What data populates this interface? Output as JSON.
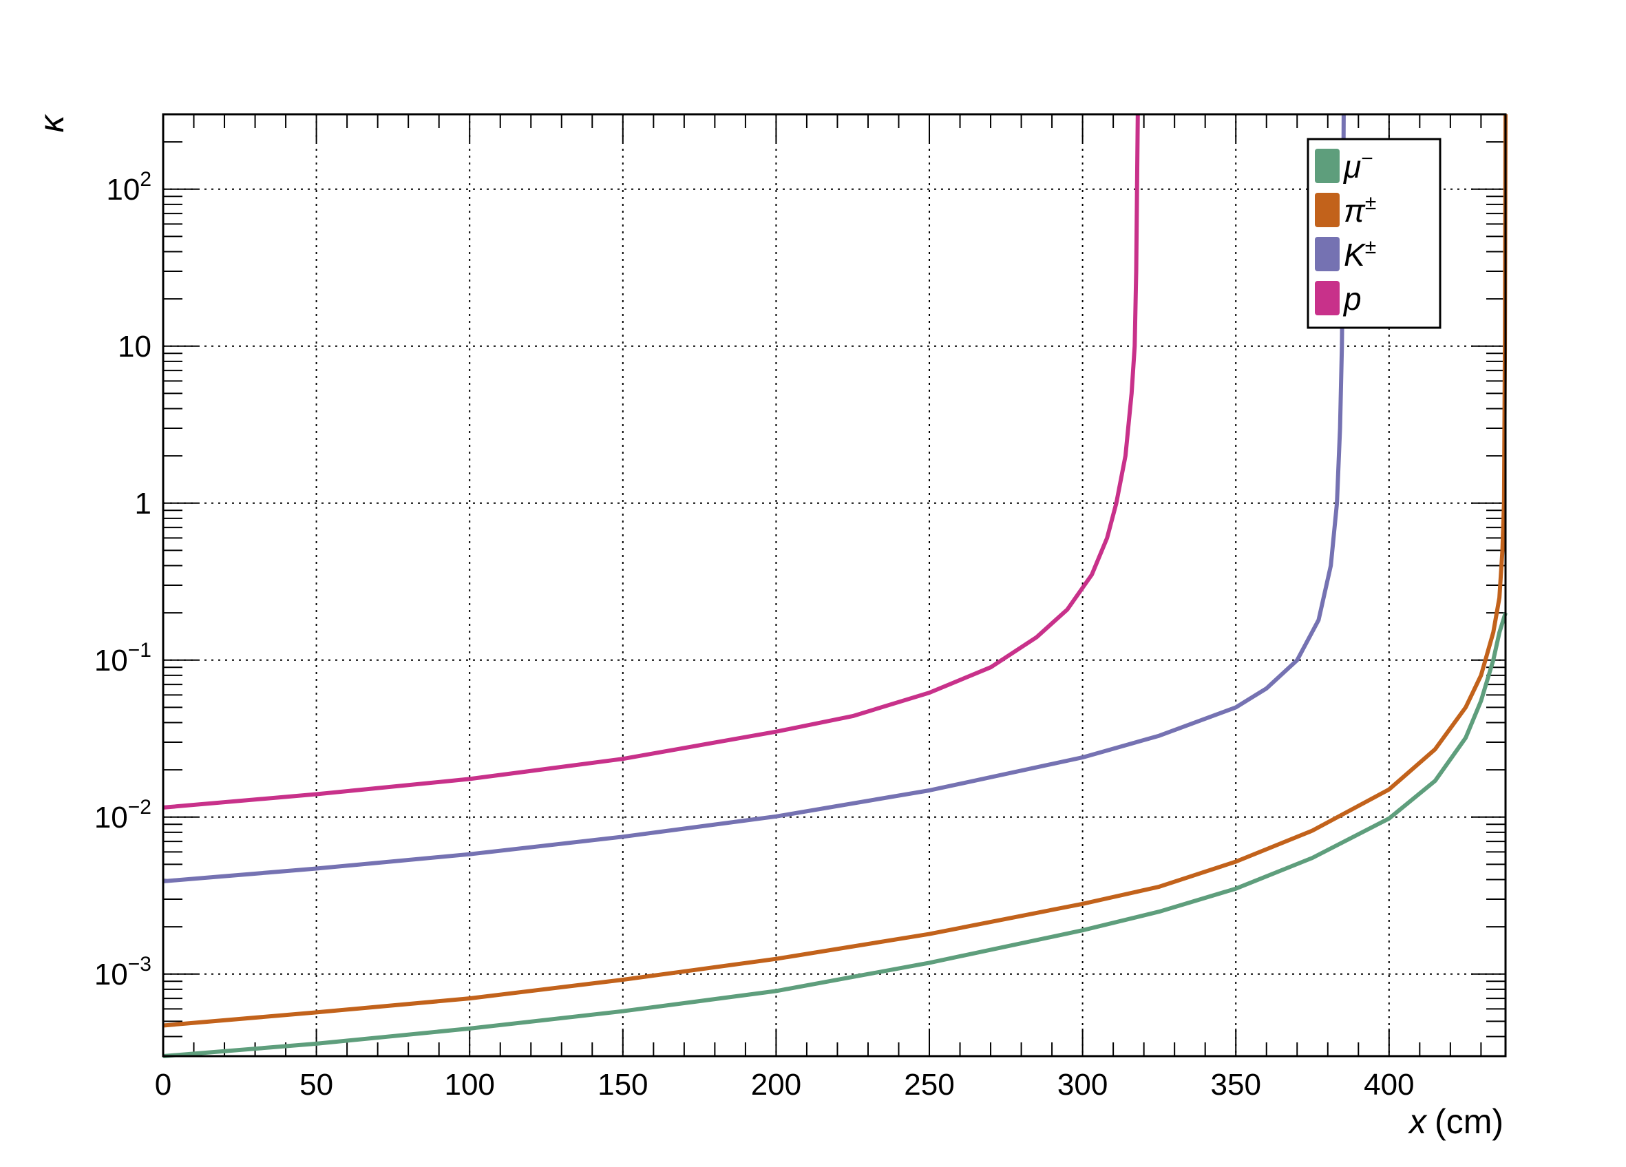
{
  "chart_data": {
    "type": "line",
    "title": "",
    "xlabel": {
      "var": "x",
      "unit": "(cm)"
    },
    "ylabel": "κ",
    "xlim": [
      0,
      438
    ],
    "ylim": [
      0.0003,
      300
    ],
    "yscale": "log",
    "grid": true,
    "legend_position": "top-right",
    "x_ticks": [
      {
        "value": 0,
        "label": "0"
      },
      {
        "value": 50,
        "label": "50"
      },
      {
        "value": 100,
        "label": "100"
      },
      {
        "value": 150,
        "label": "150"
      },
      {
        "value": 200,
        "label": "200"
      },
      {
        "value": 250,
        "label": "250"
      },
      {
        "value": 300,
        "label": "300"
      },
      {
        "value": 350,
        "label": "350"
      },
      {
        "value": 400,
        "label": "400"
      }
    ],
    "y_ticks": [
      {
        "value": 0.001,
        "base": "10",
        "exp": "−3"
      },
      {
        "value": 0.01,
        "base": "10",
        "exp": "−2"
      },
      {
        "value": 0.1,
        "base": "10",
        "exp": "−1"
      },
      {
        "value": 1,
        "base": "1",
        "exp": ""
      },
      {
        "value": 10,
        "base": "10",
        "exp": ""
      },
      {
        "value": 100,
        "base": "10",
        "exp": "2"
      }
    ],
    "series": [
      {
        "name": "μ",
        "name_sup": "−",
        "color": "#5e9e7c",
        "points": [
          [
            0,
            0.0003
          ],
          [
            50,
            0.00036
          ],
          [
            100,
            0.00045
          ],
          [
            150,
            0.00058
          ],
          [
            200,
            0.00078
          ],
          [
            250,
            0.00118
          ],
          [
            300,
            0.0019
          ],
          [
            325,
            0.0025
          ],
          [
            350,
            0.0035
          ],
          [
            375,
            0.0055
          ],
          [
            400,
            0.0098
          ],
          [
            415,
            0.017
          ],
          [
            425,
            0.032
          ],
          [
            430,
            0.055
          ],
          [
            434,
            0.1
          ],
          [
            436,
            0.15
          ],
          [
            438,
            0.2
          ]
        ]
      },
      {
        "name": "π",
        "name_sup": "±",
        "color": "#c2621b",
        "points": [
          [
            0,
            0.00047
          ],
          [
            50,
            0.00057
          ],
          [
            100,
            0.0007
          ],
          [
            150,
            0.00092
          ],
          [
            200,
            0.00125
          ],
          [
            250,
            0.0018
          ],
          [
            300,
            0.0028
          ],
          [
            325,
            0.0036
          ],
          [
            350,
            0.0052
          ],
          [
            375,
            0.0082
          ],
          [
            400,
            0.015
          ],
          [
            415,
            0.027
          ],
          [
            425,
            0.05
          ],
          [
            430,
            0.08
          ],
          [
            434,
            0.15
          ],
          [
            436,
            0.25
          ],
          [
            437,
            0.5
          ],
          [
            437.5,
            1
          ],
          [
            437.8,
            10
          ],
          [
            438,
            300
          ]
        ]
      },
      {
        "name": "K",
        "name_sup": "±",
        "color": "#7572b2",
        "points": [
          [
            0,
            0.0039
          ],
          [
            50,
            0.0047
          ],
          [
            100,
            0.0058
          ],
          [
            150,
            0.0075
          ],
          [
            200,
            0.0101
          ],
          [
            250,
            0.0148
          ],
          [
            300,
            0.024
          ],
          [
            325,
            0.033
          ],
          [
            350,
            0.05
          ],
          [
            360,
            0.066
          ],
          [
            370,
            0.1
          ],
          [
            377,
            0.18
          ],
          [
            381,
            0.4
          ],
          [
            383,
            1
          ],
          [
            384,
            3
          ],
          [
            384.6,
            10
          ],
          [
            385,
            50
          ],
          [
            385.2,
            300
          ]
        ]
      },
      {
        "name": "p",
        "name_sup": "",
        "color": "#c8318a",
        "points": [
          [
            0,
            0.0115
          ],
          [
            50,
            0.014
          ],
          [
            100,
            0.0175
          ],
          [
            150,
            0.0235
          ],
          [
            200,
            0.035
          ],
          [
            225,
            0.044
          ],
          [
            250,
            0.062
          ],
          [
            270,
            0.09
          ],
          [
            285,
            0.14
          ],
          [
            295,
            0.21
          ],
          [
            303,
            0.35
          ],
          [
            308,
            0.6
          ],
          [
            311,
            1
          ],
          [
            314,
            2
          ],
          [
            316,
            5
          ],
          [
            317,
            10
          ],
          [
            317.5,
            30
          ],
          [
            318,
            300
          ]
        ]
      }
    ]
  }
}
